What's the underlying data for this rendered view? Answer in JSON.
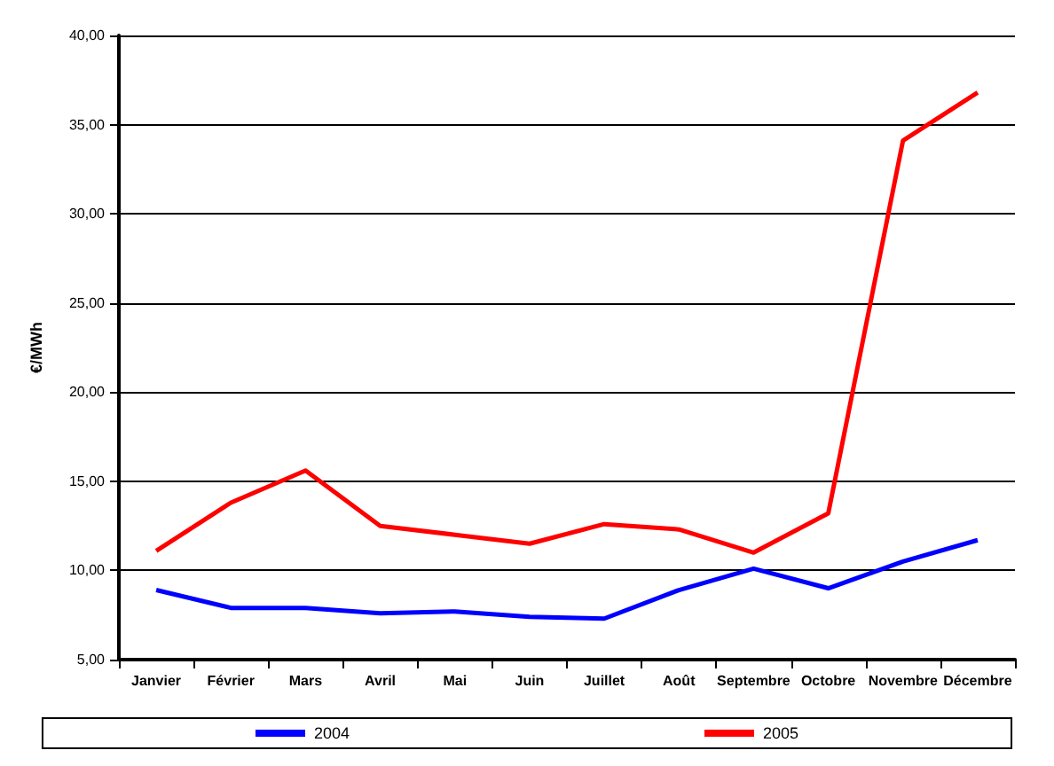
{
  "chart_data": {
    "type": "line",
    "ylabel": "€/MWh",
    "categories": [
      "Janvier",
      "Février",
      "Mars",
      "Avril",
      "Mai",
      "Juin",
      "Juillet",
      "Août",
      "Septembre",
      "Octobre",
      "Novembre",
      "Décembre"
    ],
    "series": [
      {
        "name": "2004",
        "color": "#0000ff",
        "values": [
          8.9,
          7.9,
          7.9,
          7.6,
          7.7,
          7.4,
          7.3,
          8.9,
          10.1,
          9.0,
          10.5,
          11.7
        ]
      },
      {
        "name": "2005",
        "color": "#ff0000",
        "values": [
          11.1,
          13.8,
          15.6,
          12.5,
          12.0,
          11.5,
          12.6,
          12.3,
          11.0,
          13.2,
          34.1,
          36.8
        ]
      }
    ],
    "ylim": [
      5,
      40
    ],
    "yticks": [
      {
        "value": 5,
        "label": "5,00"
      },
      {
        "value": 10,
        "label": "10,00"
      },
      {
        "value": 15,
        "label": "15,00"
      },
      {
        "value": 20,
        "label": "20,00"
      },
      {
        "value": 25,
        "label": "25,00"
      },
      {
        "value": 30,
        "label": "30,00"
      },
      {
        "value": 35,
        "label": "35,00"
      },
      {
        "value": 40,
        "label": "40,00"
      }
    ],
    "grid": "y",
    "legend": "bottom",
    "marker": "none",
    "line_style": "solid"
  }
}
